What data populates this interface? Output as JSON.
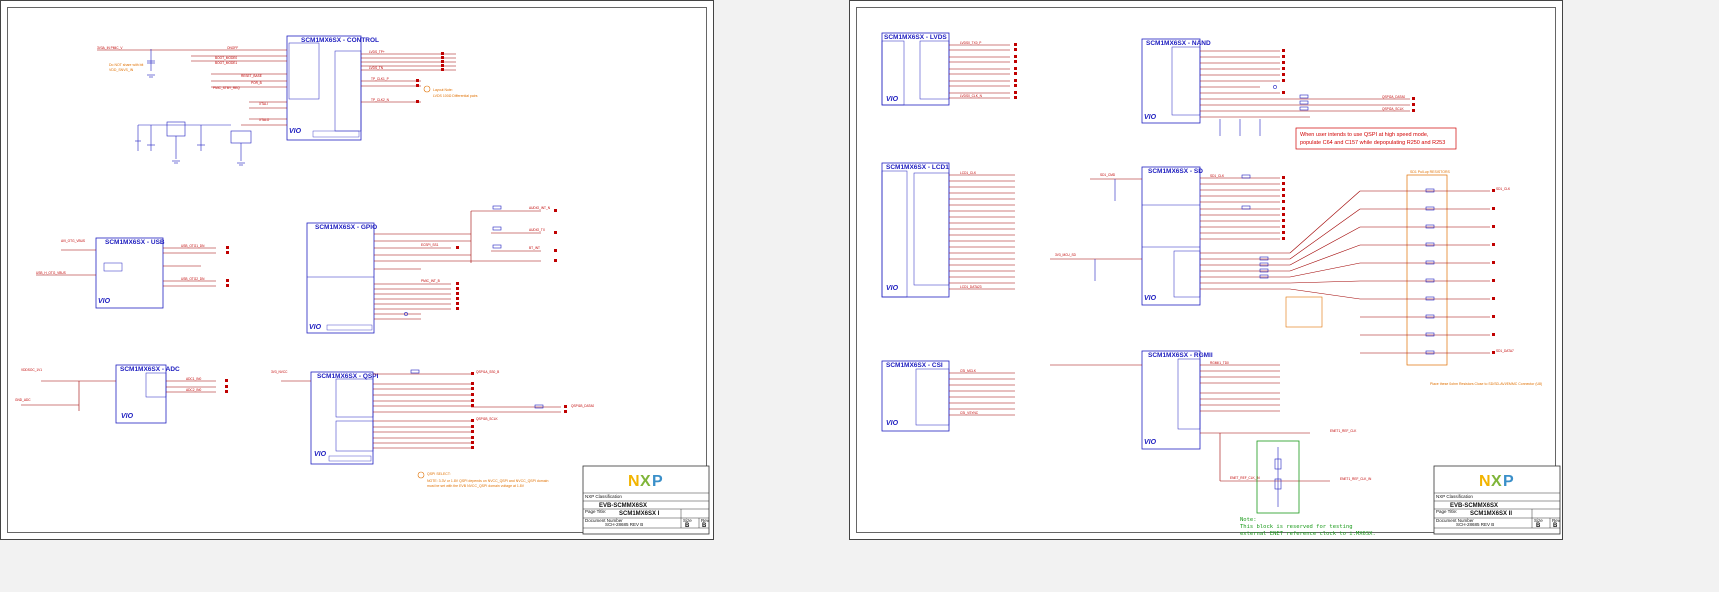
{
  "left_sheet": {
    "blocks": {
      "control": {
        "title": "SCM1MX6SX - CONTROL",
        "vio": "VIO"
      },
      "usb": {
        "title": "SCM1MX6SX - USB",
        "vio": "VIO"
      },
      "gpio": {
        "title": "SCM1MX6SX - GPIO",
        "vio": "VIO"
      },
      "adc": {
        "title": "SCM1MX6SX - ADC",
        "vio": "VIO"
      },
      "qspi": {
        "title": "SCM1MX6SX - QSPI",
        "vio": "VIO"
      }
    },
    "notes": {
      "control_orange_1": "Do NOT share with bit",
      "control_orange_2": "VDD_SNVS_IN",
      "control_circle_1": "Layout Note:",
      "control_circle_2": "LVDS 100Ω Differential pairs",
      "qspi_orange_1": "QSPI SELECT:",
      "qspi_orange_2": "NOTE: 3.3V or 1.8V QSPI depends on NVCC_QSPI and NVCC_QSPI domain",
      "qspi_orange_3": "must be set with the EVB NVCC_QSPI domain voltage at 1.8V"
    },
    "title_block": {
      "company": "EVB-SCMMX6SX",
      "sheet_title": "SCM1MX6SX I",
      "doc_number": "SCH-28685 REV B",
      "label_classification": "NXP Classification",
      "label_page_title": "Page Title:",
      "label_drawing_title": "Drawing Title:",
      "label_doc_number": "Document Number",
      "label_size": "Size",
      "label_rev": "Rev",
      "size": "B",
      "rev": "B"
    }
  },
  "right_sheet": {
    "blocks": {
      "lvds": {
        "title": "SCM1MX6SX - LVDS",
        "vio": "VIO"
      },
      "nand": {
        "title": "SCM1MX6SX - NAND",
        "vio": "VIO"
      },
      "lcd1": {
        "title": "SCM1MX6SX - LCD1",
        "vio": "VIO"
      },
      "sd": {
        "title": "SCM1MX6SX - SD",
        "vio": "VIO"
      },
      "csi": {
        "title": "SCM1MX6SX - CSI",
        "vio": "VIO"
      },
      "rgmii": {
        "title": "SCM1MX6SX - RGMII",
        "vio": "VIO"
      }
    },
    "notes": {
      "nand_red_1": "When user intends to use QSPI at high speed mode,",
      "nand_red_2": "populate C64 and C157 while depopulating R250 and R253",
      "sd_orange": "SD1 Pull-up RESISTORS",
      "sd_bottom_orange": "Place these 0ohm Resistors Close to SD/SD-AVI/EMMC Connector (U8)",
      "green_1": "Note:",
      "green_2": "This block is reserved for testing",
      "green_3": "external ENET reference clock to i.MX6SX."
    },
    "title_block": {
      "company": "EVB-SCMMX6SX",
      "sheet_title": "SCM1MX6SX II",
      "doc_number": "SCH-28685 REV B",
      "label_classification": "NXP Classification",
      "label_page_title": "Page Title:",
      "label_drawing_title": "Drawing Title:",
      "label_doc_number": "Document Number",
      "label_size": "Size",
      "label_rev": "Rev",
      "size": "B",
      "rev": "B"
    }
  },
  "colors": {
    "component": "#2020c0",
    "net_red": "#c00000",
    "orange": "#e07000",
    "green": "#1a9a1a",
    "wire": "#a00000"
  }
}
